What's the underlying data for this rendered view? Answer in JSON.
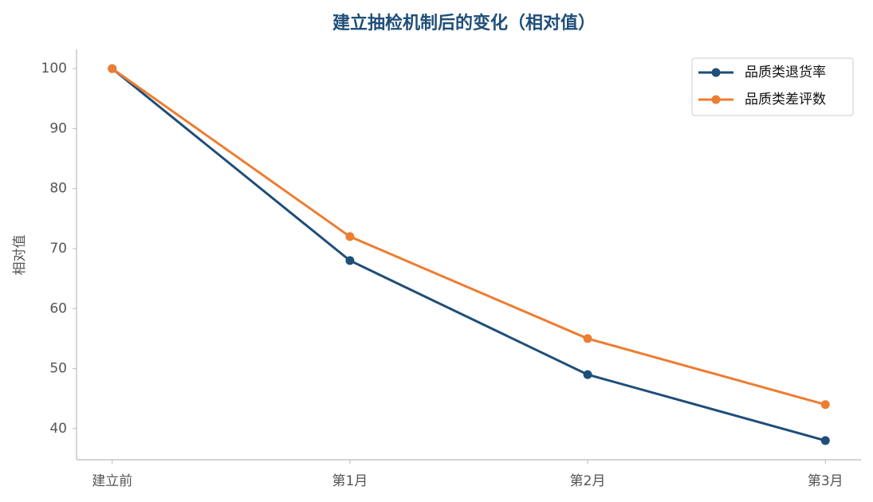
{
  "chart_data": {
    "type": "line",
    "title": "建立抽检机制后的变化（相对值）",
    "y_label": "相对值",
    "categories": [
      "建立前",
      "第1月",
      "第2月",
      "第3月"
    ],
    "series": [
      {
        "name": "品质类退货率",
        "color": "#1f4e79",
        "values": [
          100,
          68,
          49,
          38
        ]
      },
      {
        "name": "品质类差评数",
        "color": "#ed7d31",
        "values": [
          100,
          72,
          55,
          44
        ]
      }
    ],
    "ylim": [
      34.8,
      103.2
    ],
    "yticks": [
      40,
      50,
      60,
      70,
      80,
      90,
      100
    ],
    "grid": false,
    "legend": "upper right"
  }
}
